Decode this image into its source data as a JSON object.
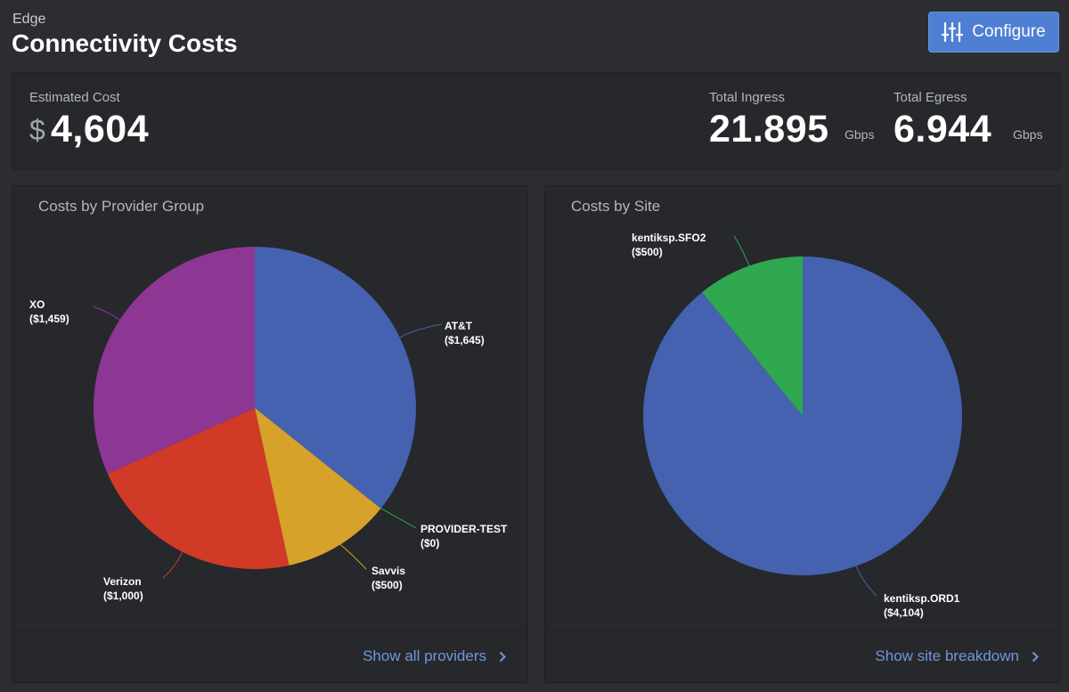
{
  "header": {
    "breadcrumb": "Edge",
    "title": "Connectivity Costs",
    "configure_label": "Configure"
  },
  "stats": {
    "cost_label": "Estimated Cost",
    "cost_currency": "$",
    "cost_value": "4,604",
    "ingress_label": "Total Ingress",
    "ingress_value": "21.895",
    "ingress_unit": "Gbps",
    "egress_label": "Total Egress",
    "egress_value": "6.944",
    "egress_unit": "Gbps"
  },
  "panels": {
    "provider": {
      "footer_link": "Show all providers"
    },
    "site": {
      "footer_link": "Show site breakdown"
    }
  },
  "chart_data": [
    {
      "type": "pie",
      "title": "Costs by Provider Group",
      "slices": [
        {
          "name": "AT&T",
          "value": 1645,
          "label": "($1,645)",
          "color": "#4462b0"
        },
        {
          "name": "PROVIDER-TEST",
          "value": 0,
          "label": "($0)",
          "color": "#2fa84f"
        },
        {
          "name": "Savvis",
          "value": 500,
          "label": "($500)",
          "color": "#d7a22a"
        },
        {
          "name": "Verizon",
          "value": 1000,
          "label": "($1,000)",
          "color": "#d03a27"
        },
        {
          "name": "XO",
          "value": 1459,
          "label": "($1,459)",
          "color": "#8e3694"
        }
      ]
    },
    {
      "type": "pie",
      "title": "Costs by Site",
      "slices": [
        {
          "name": "kentiksp.ORD1",
          "value": 4104,
          "label": "($4,104)",
          "color": "#4462b0"
        },
        {
          "name": "kentiksp.SFO2",
          "value": 500,
          "label": "($500)",
          "color": "#2fa84f"
        }
      ]
    }
  ]
}
